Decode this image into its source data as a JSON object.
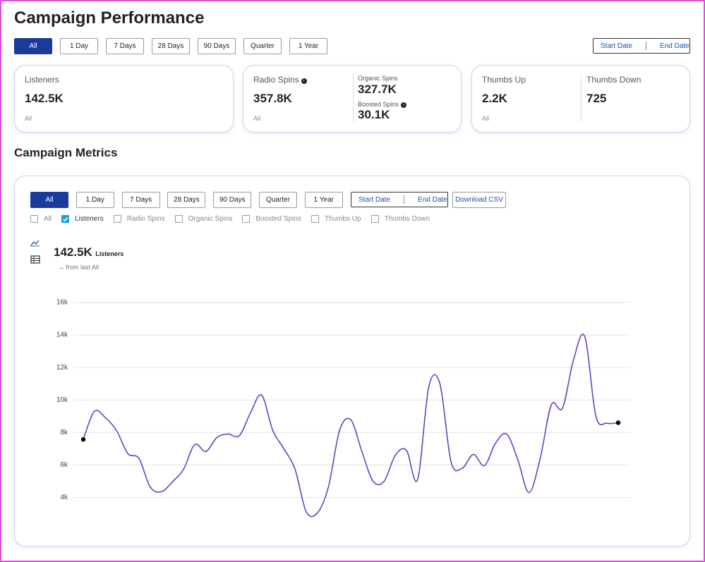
{
  "header": {
    "title": "Campaign Performance",
    "filters": [
      {
        "label": "All",
        "active": true
      },
      {
        "label": "1 Day",
        "active": false
      },
      {
        "label": "7 Days",
        "active": false
      },
      {
        "label": "28 Days",
        "active": false
      },
      {
        "label": "90 Days",
        "active": false
      },
      {
        "label": "Quarter",
        "active": false
      },
      {
        "label": "1 Year",
        "active": false
      }
    ],
    "start_date": "Start Date",
    "end_date": "End Date"
  },
  "cards": [
    {
      "label": "Listeners",
      "value": "142.5K",
      "period": "All"
    },
    {
      "label": "Radio Spins",
      "value": "357.8K",
      "period": "All",
      "sub": [
        {
          "label": "Organic Spins",
          "value": "327.7K"
        },
        {
          "label": "Boosted Spins",
          "value": "30.1K"
        }
      ]
    },
    {
      "label": "Thumbs Up",
      "value": "2.2K",
      "period": "All",
      "side": {
        "label": "Thumbs Down",
        "value": "725"
      }
    }
  ],
  "metrics": {
    "title": "Campaign Metrics",
    "filters": [
      {
        "label": "All",
        "active": true
      },
      {
        "label": "1 Day",
        "active": false
      },
      {
        "label": "7 Days",
        "active": false
      },
      {
        "label": "28 Days",
        "active": false
      },
      {
        "label": "90 Days",
        "active": false
      },
      {
        "label": "Quarter",
        "active": false
      },
      {
        "label": "1 Year",
        "active": false
      }
    ],
    "start_date": "Start Date",
    "end_date": "End Date",
    "download": "Download CSV",
    "checkboxes": [
      {
        "label": "All",
        "checked": false
      },
      {
        "label": "Listeners",
        "checked": true
      },
      {
        "label": "Radio Spins",
        "checked": false
      },
      {
        "label": "Organic Spins",
        "checked": false
      },
      {
        "label": "Boosted Spins",
        "checked": false
      },
      {
        "label": "Thumbs Up",
        "checked": false
      },
      {
        "label": "Thumbs Down",
        "checked": false
      }
    ],
    "summary": {
      "value": "142.5K",
      "label": "Listeners",
      "change": "from last All"
    }
  },
  "chart_data": {
    "type": "line",
    "color": "#6b3fc0",
    "grid": true,
    "end_markers": true,
    "ylim": [
      2500,
      16000
    ],
    "yticks": [
      {
        "value": 4000,
        "label": "4k"
      },
      {
        "value": 6000,
        "label": "6k"
      },
      {
        "value": 8000,
        "label": "8k"
      },
      {
        "value": 10000,
        "label": "10k"
      },
      {
        "value": 12000,
        "label": "12k"
      },
      {
        "value": 14000,
        "label": "14k"
      },
      {
        "value": 16000,
        "label": "16k"
      }
    ],
    "values": [
      7570,
      9300,
      8900,
      8100,
      6700,
      6400,
      4650,
      4350,
      4960,
      5740,
      7260,
      6830,
      7700,
      7900,
      7800,
      9200,
      10300,
      8130,
      7000,
      5740,
      3130,
      3040,
      4650,
      8130,
      8780,
      6830,
      5000,
      5000,
      6600,
      6900,
      5100,
      10800,
      11000,
      6200,
      5800,
      6650,
      5960,
      7350,
      7900,
      6300,
      4300,
      6400,
      9700,
      9500,
      12500,
      13900,
      9000,
      8570,
      8600
    ]
  }
}
